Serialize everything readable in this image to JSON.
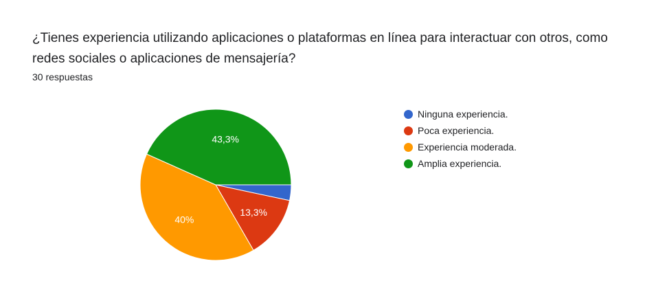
{
  "question": {
    "title": "¿Tienes experiencia utilizando aplicaciones o plataformas en línea para interactuar con otros, como redes sociales o aplicaciones de mensajería?",
    "responses": "30 respuestas"
  },
  "chart_data": {
    "type": "pie",
    "title": "¿Tienes experiencia utilizando aplicaciones o plataformas en línea para interactuar con otros, como redes sociales o aplicaciones de mensajería?",
    "categories": [
      "Ninguna experiencia.",
      "Poca experiencia.",
      "Experiencia moderada.",
      "Amplia experiencia."
    ],
    "values": [
      1,
      4,
      12,
      13
    ],
    "percent_labels": [
      "",
      "13,3%",
      "40%",
      "43,3%"
    ],
    "colors": [
      "#3366cc",
      "#dc3912",
      "#ff9900",
      "#109618"
    ],
    "legend_position": "right",
    "total": 30
  },
  "legend": {
    "items": [
      {
        "label": "Ninguna experiencia.",
        "color": "#3366cc"
      },
      {
        "label": "Poca experiencia.",
        "color": "#dc3912"
      },
      {
        "label": "Experiencia moderada.",
        "color": "#ff9900"
      },
      {
        "label": "Amplia experiencia.",
        "color": "#109618"
      }
    ]
  }
}
